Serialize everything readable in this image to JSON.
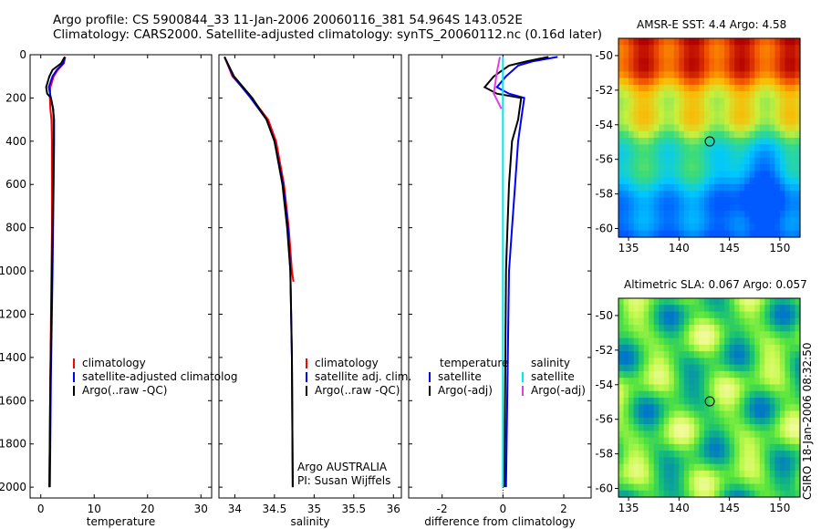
{
  "title": {
    "line1": "Argo profile: CS 5900844_33 11-Jan-2006 20060116_381 54.964S 143.052E",
    "line2": "Climatology: CARS2000. Satellite-adjusted climatology: synTS_20060112.nc (0.16d later)"
  },
  "credit": "CSIRO 18-Jan-2006 08:32:50",
  "colors": {
    "climatology": "#ff0000",
    "satellite": "#0000ff",
    "argo": "#000000",
    "sal_satellite": "#00e8e8",
    "sal_argo": "#e040e0"
  },
  "chart_data": [
    {
      "type": "line",
      "id": "temperature",
      "xlabel": "temperature",
      "ylabel": "",
      "xlim": [
        -2,
        32
      ],
      "ylim": [
        2050,
        0
      ],
      "xticks": [
        0,
        10,
        20,
        30
      ],
      "yticks": [
        0,
        200,
        400,
        600,
        800,
        1000,
        1200,
        1400,
        1600,
        1800,
        2000
      ],
      "series": [
        {
          "name": "climatology",
          "color": "#ff0000",
          "depth": [
            10,
            40,
            70,
            100,
            150,
            200,
            250,
            300,
            400,
            600,
            800,
            1000,
            1500,
            2000
          ],
          "values": [
            4.6,
            4.3,
            3.2,
            2.4,
            1.8,
            1.7,
            1.8,
            2.0,
            2.1,
            2.1,
            2.1,
            2.0,
            1.8,
            1.6
          ]
        },
        {
          "name": "satellite-adjusted climatology",
          "color": "#0000ff",
          "depth": [
            10,
            40,
            70,
            100,
            150,
            200,
            250,
            300,
            400,
            600,
            800,
            1000,
            1500,
            2000
          ],
          "values": [
            4.5,
            4.2,
            3.0,
            2.2,
            1.5,
            1.9,
            2.3,
            2.5,
            2.5,
            2.4,
            2.3,
            2.2,
            1.9,
            1.7
          ]
        },
        {
          "name": "Argo(..raw -QC)",
          "color": "#000000",
          "depth": [
            10,
            40,
            70,
            100,
            150,
            180,
            200,
            250,
            300,
            400,
            600,
            800,
            1000,
            1500,
            2000
          ],
          "values": [
            4.5,
            3.8,
            2.2,
            1.6,
            1.0,
            1.2,
            1.9,
            2.3,
            2.4,
            2.4,
            2.3,
            2.2,
            2.1,
            1.8,
            1.6
          ]
        }
      ],
      "legend": [
        "climatology",
        "satellite-adjusted climatolog",
        "Argo(..raw -QC)"
      ]
    },
    {
      "type": "line",
      "id": "salinity",
      "xlabel": "salinity",
      "ylabel": "",
      "xlim": [
        33.8,
        36.1
      ],
      "ylim": [
        2050,
        0
      ],
      "xticks": [
        34,
        34.5,
        35,
        35.5,
        36
      ],
      "series": [
        {
          "name": "climatology",
          "color": "#ff0000",
          "depth": [
            10,
            100,
            200,
            300,
            400,
            600,
            800,
            1000,
            1050
          ],
          "values": [
            33.87,
            33.97,
            34.21,
            34.42,
            34.52,
            34.62,
            34.68,
            34.72,
            34.74
          ]
        },
        {
          "name": "satellite adj. clim.",
          "color": "#0000ff",
          "depth": [
            10,
            100,
            200,
            300,
            400,
            600,
            800,
            1000,
            1400,
            2000
          ],
          "values": [
            33.87,
            33.98,
            34.2,
            34.4,
            34.5,
            34.61,
            34.67,
            34.7,
            34.72,
            34.73
          ]
        },
        {
          "name": "Argo(..raw -QC)",
          "color": "#000000",
          "depth": [
            10,
            100,
            200,
            300,
            400,
            600,
            800,
            1000,
            1400,
            2000
          ],
          "values": [
            33.87,
            33.99,
            34.22,
            34.4,
            34.5,
            34.6,
            34.66,
            34.7,
            34.72,
            34.73
          ]
        }
      ],
      "legend": [
        "climatology",
        "satellite adj. clim.",
        "Argo(..raw -QC)"
      ],
      "annotation": [
        "Argo AUSTRALIA",
        "PI: Susan Wijffels"
      ]
    },
    {
      "type": "line",
      "id": "difference",
      "xlabel": "difference from climatology",
      "ylabel": "",
      "xlim": [
        -3.1,
        2.9
      ],
      "ylim": [
        2050,
        0
      ],
      "xticks": [
        -2,
        0,
        2
      ],
      "series": [
        {
          "name": "temperature satellite",
          "color": "#0000ff",
          "depth": [
            10,
            30,
            50,
            100,
            150,
            180,
            200,
            300,
            400,
            600,
            800,
            1000,
            2000
          ],
          "values": [
            1.8,
            1.0,
            0.5,
            0.1,
            -0.2,
            0.2,
            0.7,
            0.6,
            0.5,
            0.4,
            0.3,
            0.2,
            0.1
          ]
        },
        {
          "name": "temperature Argo(-adj)",
          "color": "#000000",
          "depth": [
            10,
            30,
            50,
            100,
            150,
            180,
            200,
            300,
            400,
            600,
            800,
            1000,
            2000
          ],
          "values": [
            1.5,
            0.8,
            0.2,
            -0.3,
            -0.6,
            -0.2,
            0.6,
            0.5,
            0.3,
            0.2,
            0.15,
            0.1,
            0.05
          ]
        },
        {
          "name": "salinity satellite",
          "color": "#00e8e8",
          "depth": [
            10,
            100,
            300,
            600,
            1000,
            2000
          ],
          "values": [
            0.0,
            0.0,
            0.0,
            0.0,
            0.0,
            0.0
          ]
        },
        {
          "name": "salinity Argo(-adj)",
          "color": "#e040e0",
          "depth": [
            10,
            80,
            180,
            250
          ],
          "values": [
            -0.1,
            -0.2,
            -0.3,
            -0.05
          ]
        }
      ],
      "legend": {
        "temperature": [
          "satellite",
          "Argo(-adj)"
        ],
        "salinity": [
          "satellite",
          "Argo(-adj)"
        ]
      },
      "legend_headers": [
        "temperature",
        "salinity"
      ]
    },
    {
      "type": "heatmap",
      "id": "sst",
      "title": "AMSR-E SST: 4.4 Argo: 4.58",
      "xlim": [
        134,
        152
      ],
      "ylim": [
        -60.5,
        -49
      ],
      "xticks": [
        135,
        140,
        145,
        150
      ],
      "yticks": [
        -50,
        -52,
        -54,
        -56,
        -58,
        -60
      ],
      "marker": {
        "lon": 143.052,
        "lat": -54.964
      }
    },
    {
      "type": "heatmap",
      "id": "sla",
      "title": "Altimetric SLA: 0.067 Argo: 0.057",
      "xlim": [
        134,
        152
      ],
      "ylim": [
        -60.5,
        -49
      ],
      "xticks": [
        135,
        140,
        145,
        150
      ],
      "yticks": [
        -50,
        -52,
        -54,
        -56,
        -58,
        -60
      ],
      "marker": {
        "lon": 143.052,
        "lat": -54.964
      }
    }
  ]
}
